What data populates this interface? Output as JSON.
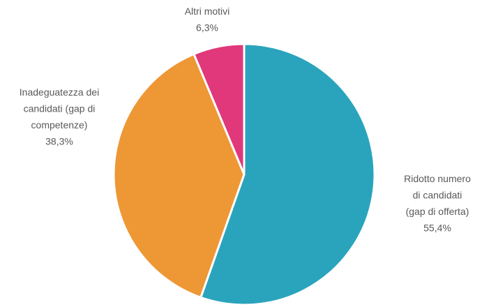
{
  "chart_data": {
    "type": "pie",
    "title": "",
    "slices": [
      {
        "label_lines": [
          "Ridotto numero",
          "di candidati",
          "(gap di offerta)"
        ],
        "value_label": "55,4%",
        "value": 55.4,
        "color": "#2aa4bd"
      },
      {
        "label_lines": [
          "Inadeguatezza dei",
          "candidati (gap di",
          "competenze)"
        ],
        "value_label": "38,3%",
        "value": 38.3,
        "color": "#ee9735"
      },
      {
        "label_lines": [
          "Altri motivi"
        ],
        "value_label": "6,3%",
        "value": 6.3,
        "color": "#e0387a"
      }
    ],
    "legend": "none",
    "start": "top, clockwise"
  }
}
